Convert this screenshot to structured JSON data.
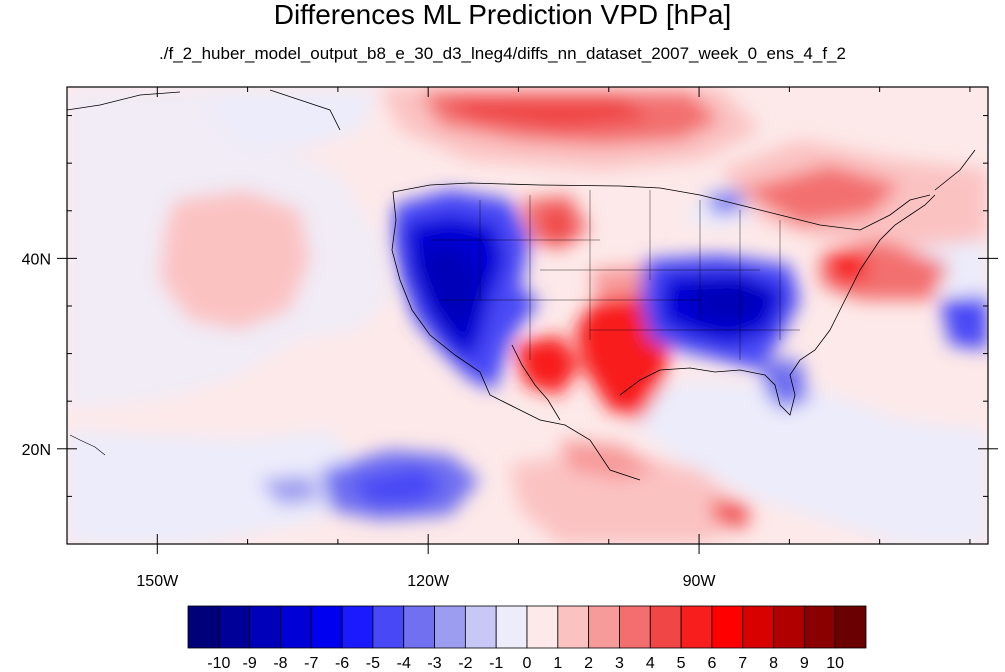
{
  "title": "Differences ML Prediction VPD [hPa]",
  "subtitle": "./f_2_huber_model_output_b8_e_30_d3_lneg4/diffs_nn_dataset_2007_week_0_ens_4_f_2",
  "map": {
    "projection": "cylindrical equidistant",
    "lon_range": [
      -160,
      -58
    ],
    "lat_range": [
      10,
      58
    ],
    "lon_ticks": [
      {
        "value": -150,
        "label": "150W"
      },
      {
        "value": -120,
        "label": "120W"
      },
      {
        "value": -90,
        "label": "90W"
      }
    ],
    "lat_ticks": [
      {
        "value": 40,
        "label": "40N"
      },
      {
        "value": 20,
        "label": "20N"
      }
    ]
  },
  "colorbar": {
    "labels": [
      "-10",
      "-9",
      "-8",
      "-7",
      "-6",
      "-5",
      "-4",
      "-3",
      "-2",
      "-1",
      "0",
      "1",
      "2",
      "3",
      "4",
      "5",
      "6",
      "7",
      "8",
      "9",
      "10"
    ],
    "colors": [
      "#00007a",
      "#000099",
      "#0000b8",
      "#0000d6",
      "#0000f0",
      "#1a1aff",
      "#4848f6",
      "#7070f0",
      "#9c9cf0",
      "#c8c8f6",
      "#ececfb",
      "#fde9e9",
      "#fbc2c2",
      "#f79a9a",
      "#f36f6f",
      "#f04646",
      "#f81e1e",
      "#ff0000",
      "#d90000",
      "#b00000",
      "#8a0000",
      "#6a0000"
    ]
  }
}
